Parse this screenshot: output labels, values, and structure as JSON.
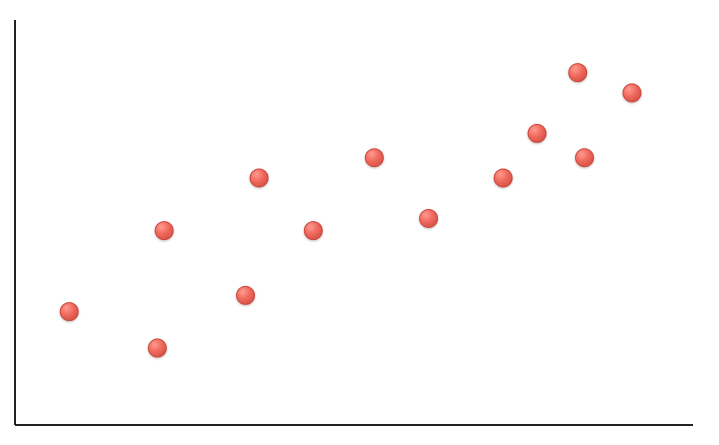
{
  "chart_data": {
    "type": "scatter",
    "title": "",
    "xlabel": "",
    "ylabel": "",
    "xlim": [
      0,
      100
    ],
    "ylim": [
      0,
      100
    ],
    "grid": false,
    "legend": "none",
    "series": [
      {
        "points": [
          {
            "x": 8,
            "y": 28
          },
          {
            "x": 21,
            "y": 19
          },
          {
            "x": 22,
            "y": 48
          },
          {
            "x": 34,
            "y": 32
          },
          {
            "x": 36,
            "y": 61
          },
          {
            "x": 44,
            "y": 48
          },
          {
            "x": 53,
            "y": 66
          },
          {
            "x": 61,
            "y": 51
          },
          {
            "x": 72,
            "y": 61
          },
          {
            "x": 77,
            "y": 72
          },
          {
            "x": 83,
            "y": 87
          },
          {
            "x": 84,
            "y": 66
          },
          {
            "x": 91,
            "y": 82
          }
        ]
      }
    ],
    "colors": {
      "point_fill": "#f06a5e",
      "point_stroke": "#c9463b",
      "axis": "#222222"
    }
  }
}
